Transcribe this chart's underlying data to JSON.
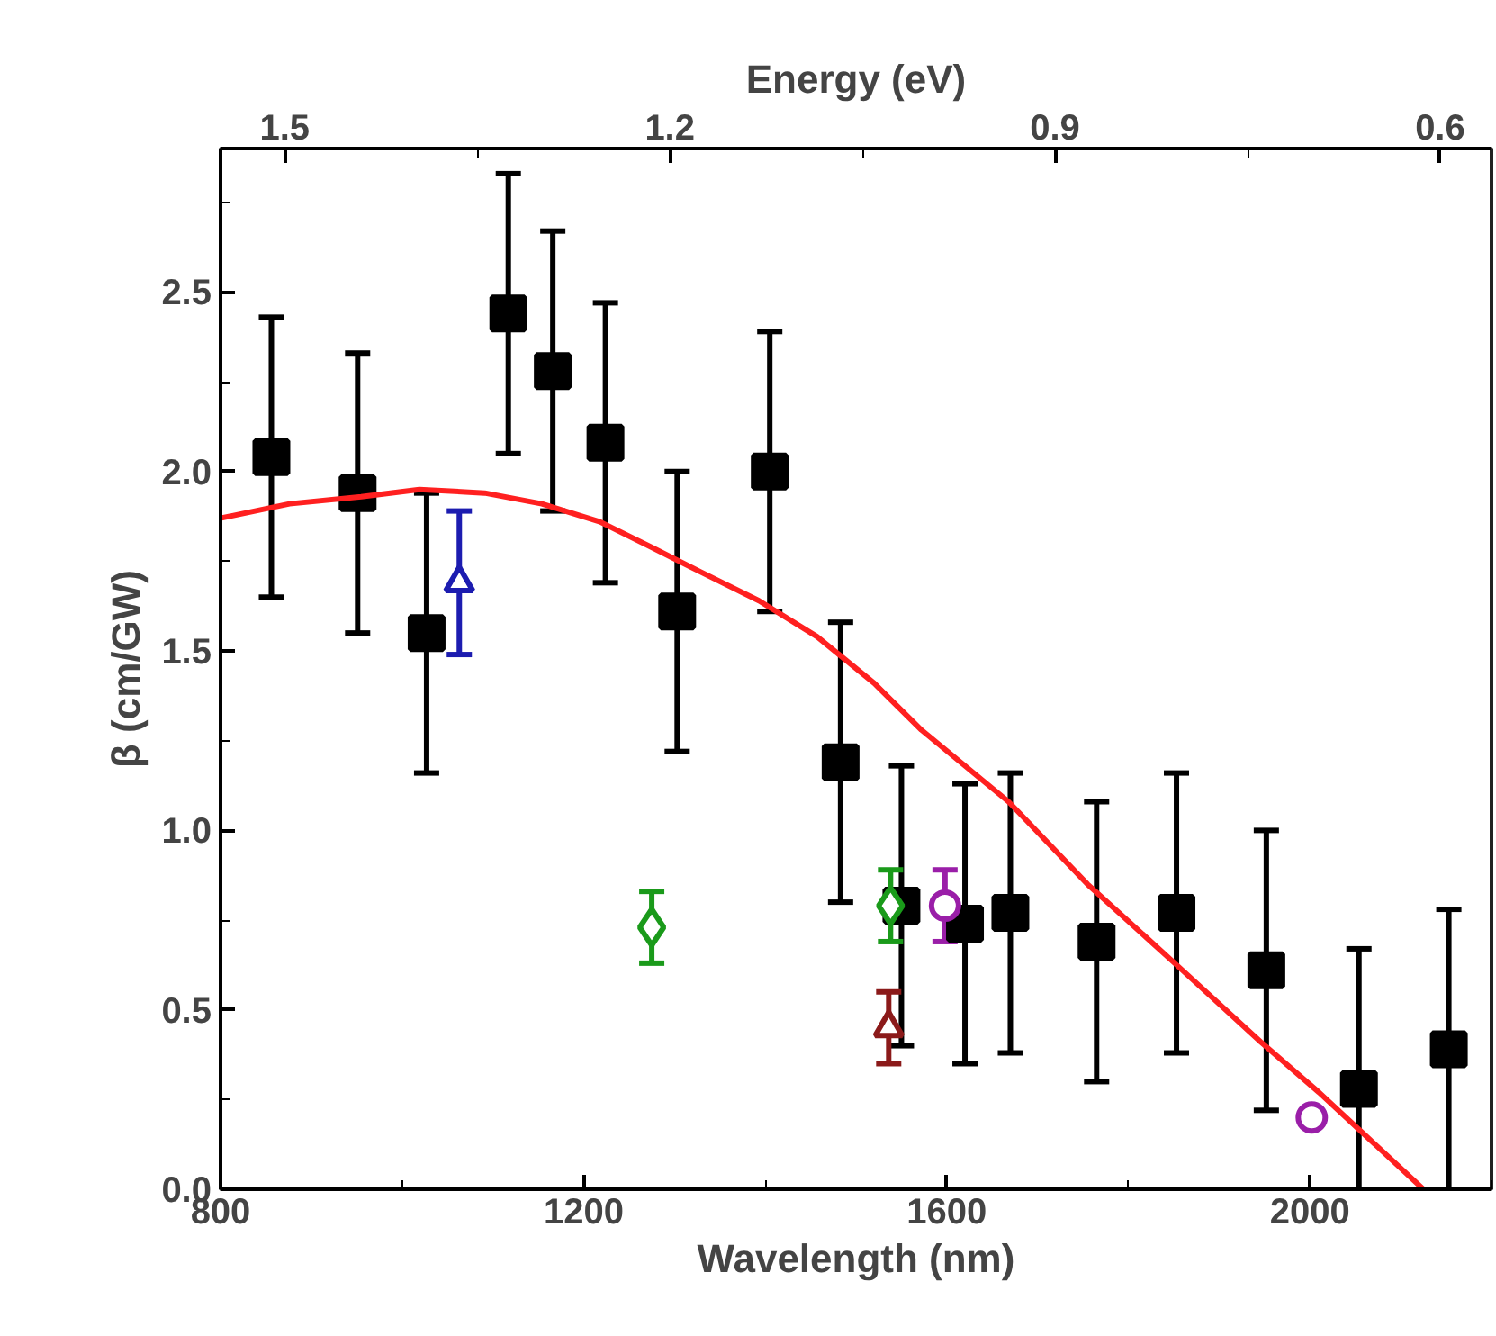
{
  "chart_data": {
    "type": "scatter",
    "xlabel": "Wavelength (nm)",
    "ylabel": "β (cm/GW)",
    "x2label": "Energy (eV)",
    "xlim": [
      800,
      2200
    ],
    "xticks": [
      800,
      1200,
      1600,
      2000
    ],
    "ylim": [
      0,
      2.9
    ],
    "yticks": [
      {
        "value": 0,
        "label": "0.0"
      },
      0.5,
      {
        "value": 1,
        "label": "1.0"
      },
      1.5,
      {
        "value": 2,
        "label": "2.0"
      },
      2.5
    ],
    "x2lim": [
      1.55,
      0.56
    ],
    "x2ticks": [
      1.5,
      1.2,
      0.9,
      0.6
    ],
    "grid": false,
    "series": [
      {
        "color": "#000000",
        "marker": "square",
        "x": [
          856,
          951,
          1027,
          1117,
          1166,
          1224,
          1303,
          1405,
          1483,
          1550,
          1620,
          1670,
          1765,
          1853,
          1952,
          2054,
          2153
        ],
        "values": [
          2.04,
          1.94,
          1.55,
          2.44,
          2.28,
          2.08,
          1.61,
          2.0,
          1.19,
          0.79,
          0.74,
          0.77,
          0.69,
          0.77,
          0.61,
          0.28,
          0.39
        ],
        "errors": [
          0.39,
          0.39,
          0.39,
          0.39,
          0.39,
          0.39,
          0.39,
          0.39,
          0.39,
          0.39,
          0.39,
          0.39,
          0.39,
          0.39,
          0.39,
          [
            0.0,
            0.67
          ],
          0.39
        ]
      },
      {
        "color": "#1c1cb0",
        "marker": "triangle",
        "x": [
          1063
        ],
        "values": [
          1.69
        ],
        "errors": [
          0.2
        ]
      },
      {
        "color": "#1a9a1a",
        "marker": "diamond",
        "x": [
          1275,
          1538
        ],
        "values": [
          0.73,
          0.79
        ],
        "errors": [
          0.1,
          0.1
        ]
      },
      {
        "color": "#8b1a1a",
        "marker": "triangle",
        "x": [
          1536
        ],
        "values": [
          0.45
        ],
        "errors": [
          0.1
        ]
      },
      {
        "color": "#9a1ea8",
        "marker": "circle",
        "x": [
          1598,
          2002
        ],
        "values": [
          0.79,
          0.2
        ],
        "errors": [
          0.1,
          null
        ]
      },
      {
        "type": "line",
        "color": "#ff2020",
        "marker": "none",
        "x": [
          800,
          876,
          955,
          1019,
          1091,
          1154,
          1218,
          1274,
          1329,
          1393,
          1457,
          1520,
          1572,
          1668,
          1755,
          1851,
          1946,
          2010,
          2125,
          2200
        ],
        "values": [
          1.87,
          1.91,
          1.93,
          1.95,
          1.94,
          1.91,
          1.86,
          1.79,
          1.72,
          1.64,
          1.54,
          1.41,
          1.28,
          1.08,
          0.85,
          0.63,
          0.41,
          0.27,
          0.0,
          0.0
        ]
      }
    ]
  }
}
